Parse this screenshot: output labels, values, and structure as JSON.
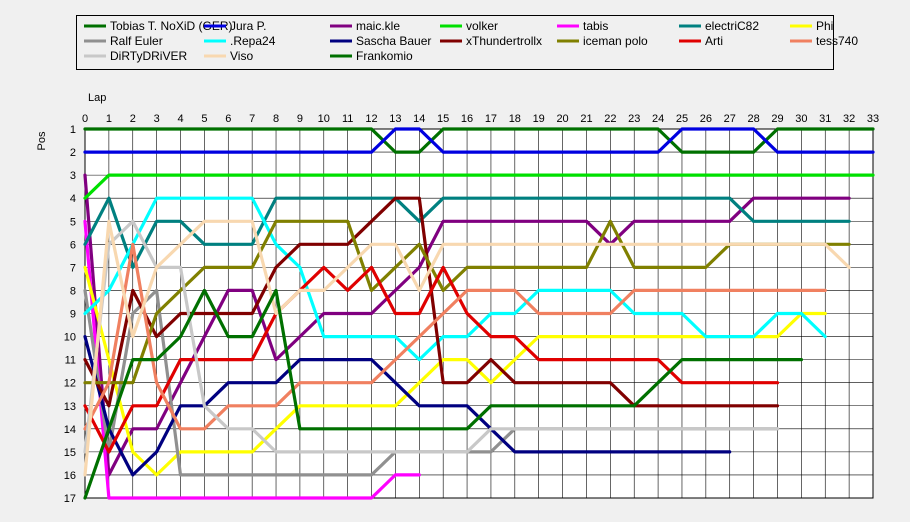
{
  "chart_data": {
    "type": "line",
    "xlabel": "Lap",
    "ylabel": "Pos",
    "xlim": [
      0,
      33
    ],
    "ylim": [
      1,
      17
    ],
    "y_reversed": true,
    "grid": true,
    "legend_position": "top",
    "series": [
      {
        "name": "Tobias T. NoXiD (GER)",
        "color": "#007000",
        "points": [
          [
            0,
            1
          ],
          [
            12,
            1
          ],
          [
            13,
            2
          ],
          [
            14,
            2
          ],
          [
            15,
            1
          ],
          [
            24,
            1
          ],
          [
            25,
            2
          ],
          [
            28,
            2
          ],
          [
            29,
            1
          ],
          [
            33,
            1
          ]
        ]
      },
      {
        "name": "Jura P.",
        "color": "#0000e0",
        "points": [
          [
            0,
            2
          ],
          [
            12,
            2
          ],
          [
            13,
            1
          ],
          [
            14,
            1
          ],
          [
            15,
            2
          ],
          [
            24,
            2
          ],
          [
            25,
            1
          ],
          [
            28,
            1
          ],
          [
            29,
            2
          ],
          [
            33,
            2
          ]
        ]
      },
      {
        "name": "maic.kle",
        "color": "#800080",
        "points": [
          [
            0,
            3
          ],
          [
            1,
            16
          ],
          [
            2,
            14
          ],
          [
            3,
            14
          ],
          [
            4,
            12
          ],
          [
            5,
            10
          ],
          [
            6,
            8
          ],
          [
            7,
            8
          ],
          [
            8,
            11
          ],
          [
            9,
            10
          ],
          [
            10,
            9
          ],
          [
            12,
            9
          ],
          [
            13,
            8
          ],
          [
            14,
            7
          ],
          [
            15,
            5
          ],
          [
            21,
            5
          ],
          [
            22,
            6
          ],
          [
            23,
            5
          ],
          [
            27,
            5
          ],
          [
            28,
            4
          ],
          [
            32,
            4
          ]
        ]
      },
      {
        "name": "volker",
        "color": "#00e000",
        "points": [
          [
            0,
            4
          ],
          [
            1,
            3
          ],
          [
            33,
            3
          ]
        ]
      },
      {
        "name": "tabis",
        "color": "#ff00ff",
        "points": [
          [
            0,
            5
          ],
          [
            1,
            17
          ],
          [
            12,
            17
          ],
          [
            13,
            16
          ],
          [
            14,
            16
          ]
        ]
      },
      {
        "name": "electriC82",
        "color": "#008080",
        "points": [
          [
            0,
            6
          ],
          [
            1,
            4
          ],
          [
            2,
            7
          ],
          [
            3,
            5
          ],
          [
            4,
            5
          ],
          [
            5,
            6
          ],
          [
            7,
            6
          ],
          [
            8,
            4
          ],
          [
            13,
            4
          ],
          [
            14,
            5
          ],
          [
            15,
            4
          ],
          [
            27,
            4
          ],
          [
            28,
            5
          ],
          [
            32,
            5
          ]
        ]
      },
      {
        "name": "Phi",
        "color": "#ffff00",
        "points": [
          [
            0,
            7
          ],
          [
            1,
            11
          ],
          [
            2,
            15
          ],
          [
            3,
            16
          ],
          [
            4,
            15
          ],
          [
            7,
            15
          ],
          [
            8,
            14
          ],
          [
            9,
            13
          ],
          [
            13,
            13
          ],
          [
            15,
            11
          ],
          [
            16,
            11
          ],
          [
            17,
            12
          ],
          [
            19,
            10
          ],
          [
            29,
            10
          ],
          [
            30,
            9
          ],
          [
            31,
            9
          ]
        ]
      },
      {
        "name": "Ralf Euler",
        "color": "#909090",
        "points": [
          [
            0,
            8
          ],
          [
            1,
            15
          ],
          [
            2,
            9
          ],
          [
            3,
            8
          ],
          [
            4,
            16
          ],
          [
            12,
            16
          ],
          [
            13,
            15
          ],
          [
            17,
            15
          ],
          [
            18,
            14
          ],
          [
            29,
            14
          ]
        ]
      },
      {
        "name": ".Repa24",
        "color": "#00ffff",
        "points": [
          [
            0,
            9
          ],
          [
            1,
            8
          ],
          [
            2,
            6
          ],
          [
            3,
            4
          ],
          [
            7,
            4
          ],
          [
            8,
            6
          ],
          [
            9,
            7
          ],
          [
            10,
            10
          ],
          [
            13,
            10
          ],
          [
            14,
            11
          ],
          [
            15,
            10
          ],
          [
            16,
            10
          ],
          [
            17,
            9
          ],
          [
            18,
            9
          ],
          [
            19,
            8
          ],
          [
            22,
            8
          ],
          [
            23,
            9
          ],
          [
            25,
            9
          ],
          [
            26,
            10
          ],
          [
            28,
            10
          ],
          [
            29,
            9
          ],
          [
            30,
            9
          ],
          [
            31,
            10
          ]
        ]
      },
      {
        "name": "Sascha Bauer",
        "color": "#000080",
        "points": [
          [
            0,
            10
          ],
          [
            1,
            14
          ],
          [
            2,
            16
          ],
          [
            3,
            15
          ],
          [
            4,
            13
          ],
          [
            5,
            13
          ],
          [
            6,
            12
          ],
          [
            8,
            12
          ],
          [
            9,
            11
          ],
          [
            12,
            11
          ],
          [
            13,
            12
          ],
          [
            14,
            13
          ],
          [
            16,
            13
          ],
          [
            17,
            14
          ],
          [
            18,
            15
          ],
          [
            27,
            15
          ]
        ]
      },
      {
        "name": "xThundertrollx",
        "color": "#800000",
        "points": [
          [
            0,
            11
          ],
          [
            1,
            13
          ],
          [
            2,
            8
          ],
          [
            3,
            10
          ],
          [
            4,
            9
          ],
          [
            7,
            9
          ],
          [
            8,
            7
          ],
          [
            9,
            6
          ],
          [
            11,
            6
          ],
          [
            12,
            5
          ],
          [
            13,
            4
          ],
          [
            14,
            4
          ],
          [
            15,
            12
          ],
          [
            16,
            12
          ],
          [
            17,
            11
          ],
          [
            18,
            12
          ],
          [
            22,
            12
          ],
          [
            23,
            13
          ],
          [
            29,
            13
          ]
        ]
      },
      {
        "name": "iceman polo",
        "color": "#808000",
        "points": [
          [
            0,
            12
          ],
          [
            1,
            12
          ],
          [
            2,
            12
          ],
          [
            3,
            9
          ],
          [
            4,
            8
          ],
          [
            5,
            7
          ],
          [
            7,
            7
          ],
          [
            8,
            5
          ],
          [
            11,
            5
          ],
          [
            12,
            8
          ],
          [
            14,
            6
          ],
          [
            15,
            8
          ],
          [
            16,
            7
          ],
          [
            21,
            7
          ],
          [
            22,
            5
          ],
          [
            23,
            7
          ],
          [
            26,
            7
          ],
          [
            27,
            6
          ],
          [
            32,
            6
          ]
        ]
      },
      {
        "name": "Arti",
        "color": "#e00000",
        "points": [
          [
            0,
            13
          ],
          [
            1,
            15
          ],
          [
            2,
            13
          ],
          [
            3,
            13
          ],
          [
            4,
            11
          ],
          [
            7,
            11
          ],
          [
            8,
            9
          ],
          [
            10,
            7
          ],
          [
            11,
            8
          ],
          [
            12,
            7
          ],
          [
            13,
            9
          ],
          [
            14,
            9
          ],
          [
            15,
            7
          ],
          [
            16,
            9
          ],
          [
            17,
            10
          ],
          [
            18,
            10
          ],
          [
            19,
            11
          ],
          [
            24,
            11
          ],
          [
            25,
            12
          ],
          [
            29,
            12
          ]
        ]
      },
      {
        "name": "tess740",
        "color": "#f08060",
        "points": [
          [
            0,
            14
          ],
          [
            1,
            12
          ],
          [
            2,
            6
          ],
          [
            3,
            12
          ],
          [
            4,
            14
          ],
          [
            5,
            14
          ],
          [
            6,
            13
          ],
          [
            8,
            13
          ],
          [
            9,
            12
          ],
          [
            12,
            12
          ],
          [
            14,
            10
          ],
          [
            15,
            9
          ],
          [
            16,
            8
          ],
          [
            18,
            8
          ],
          [
            19,
            9
          ],
          [
            22,
            9
          ],
          [
            23,
            8
          ],
          [
            31,
            8
          ]
        ]
      },
      {
        "name": "DiRTyDRiVER",
        "color": "#c8c8c8",
        "points": [
          [
            0,
            15
          ],
          [
            1,
            6
          ],
          [
            2,
            5
          ],
          [
            3,
            7
          ],
          [
            4,
            7
          ],
          [
            5,
            13
          ],
          [
            6,
            14
          ],
          [
            7,
            14
          ],
          [
            8,
            15
          ],
          [
            12,
            15
          ],
          [
            13,
            15
          ],
          [
            14,
            15
          ],
          [
            15,
            15
          ],
          [
            16,
            15
          ],
          [
            17,
            14
          ],
          [
            18,
            14
          ],
          [
            29,
            14
          ]
        ]
      },
      {
        "name": "Viso",
        "color": "#f8d8b0",
        "points": [
          [
            0,
            16
          ],
          [
            1,
            5
          ],
          [
            2,
            10
          ],
          [
            3,
            7
          ],
          [
            4,
            6
          ],
          [
            5,
            5
          ],
          [
            7,
            5
          ],
          [
            8,
            9
          ],
          [
            9,
            8
          ],
          [
            10,
            8
          ],
          [
            11,
            7
          ],
          [
            12,
            6
          ],
          [
            13,
            6
          ],
          [
            14,
            8
          ],
          [
            15,
            6
          ],
          [
            31,
            6
          ],
          [
            32,
            7
          ]
        ]
      },
      {
        "name": "Frankomio",
        "color": "#007000",
        "points": [
          [
            0,
            17
          ],
          [
            1,
            14
          ],
          [
            2,
            11
          ],
          [
            3,
            11
          ],
          [
            4,
            10
          ],
          [
            5,
            8
          ],
          [
            6,
            10
          ],
          [
            7,
            10
          ],
          [
            8,
            8
          ],
          [
            9,
            14
          ],
          [
            16,
            14
          ],
          [
            17,
            13
          ],
          [
            23,
            13
          ],
          [
            24,
            12
          ],
          [
            25,
            11
          ],
          [
            30,
            11
          ]
        ]
      }
    ]
  }
}
